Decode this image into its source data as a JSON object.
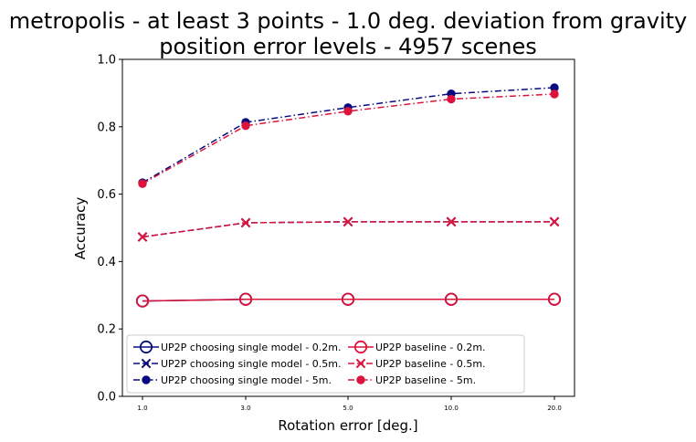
{
  "chart_data": {
    "type": "line",
    "title_line1": "metropolis - at least 3 points - 1.0 deg. deviation from gravity",
    "title_line2": "position error levels - 4957 scenes",
    "xlabel": "Rotation error [deg.]",
    "ylabel": "Accuracy",
    "categories": [
      "1.0",
      "3.0",
      "5.0",
      "10.0",
      "20.0"
    ],
    "ylim": [
      0.0,
      1.0
    ],
    "yticks": [
      "0.0",
      "0.2",
      "0.4",
      "0.6",
      "0.8",
      "1.0"
    ],
    "grid": false,
    "legend_placement": "lower-left",
    "colors": {
      "navy": "#0a0a80",
      "crimson": "#dc143c"
    },
    "series": [
      {
        "name": "UP2P choosing single model - 0.2m.",
        "values": [
          0.283,
          0.288,
          0.288,
          0.288,
          0.288
        ],
        "color": "#0a0a80",
        "linestyle": "solid",
        "marker": "open-circle"
      },
      {
        "name": "UP2P choosing single model - 0.5m.",
        "values": [
          0.473,
          0.515,
          0.518,
          0.518,
          0.518
        ],
        "color": "#0a0a80",
        "linestyle": "dashed",
        "marker": "x"
      },
      {
        "name": "UP2P choosing single model - 5m.",
        "values": [
          0.634,
          0.813,
          0.857,
          0.898,
          0.916
        ],
        "color": "#0a0a80",
        "linestyle": "dashdot",
        "marker": "filled-circle"
      },
      {
        "name": "UP2P baseline - 0.2m.",
        "values": [
          0.283,
          0.288,
          0.288,
          0.288,
          0.288
        ],
        "color": "#dc143c",
        "linestyle": "solid",
        "marker": "open-circle"
      },
      {
        "name": "UP2P baseline - 0.5m.",
        "values": [
          0.473,
          0.515,
          0.518,
          0.518,
          0.518
        ],
        "color": "#dc143c",
        "linestyle": "dashed",
        "marker": "x"
      },
      {
        "name": "UP2P baseline - 5m.",
        "values": [
          0.631,
          0.803,
          0.846,
          0.882,
          0.897
        ],
        "color": "#dc143c",
        "linestyle": "dashdot",
        "marker": "filled-circle"
      }
    ]
  }
}
